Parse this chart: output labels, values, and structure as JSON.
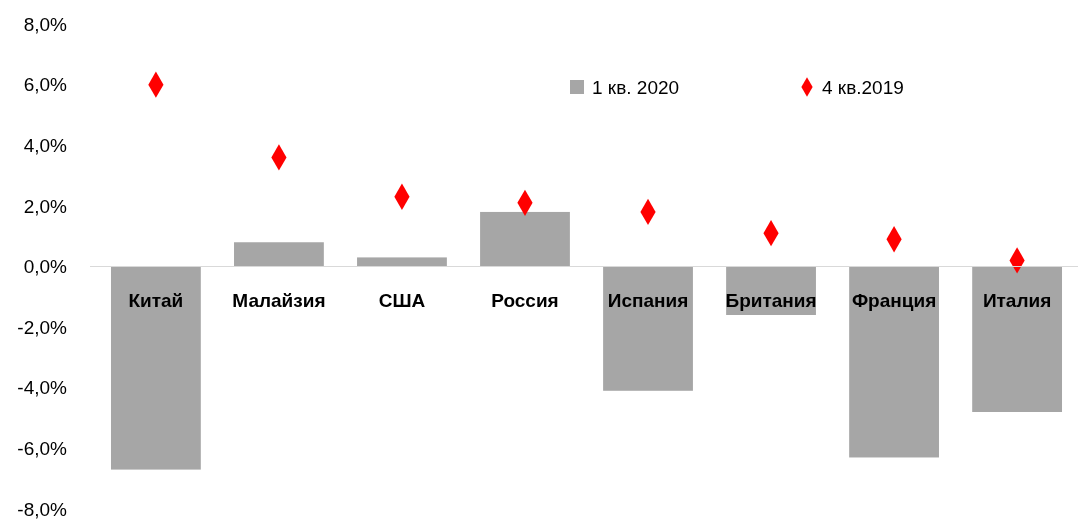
{
  "chart_data": {
    "type": "bar",
    "categories": [
      "Китай",
      "Малайзия",
      "США",
      "Россия",
      "Испания",
      "Британия",
      "Франция",
      "Италия"
    ],
    "series": [
      {
        "name": "1 кв. 2020",
        "color": "#a6a6a6",
        "values": [
          -6.7,
          0.8,
          0.3,
          1.8,
          -4.1,
          -1.6,
          -6.3,
          -4.8
        ]
      },
      {
        "name": "4 кв.2019",
        "type": "scatter",
        "color": "#ff0000",
        "marker": "diamond",
        "values": [
          6.0,
          3.6,
          2.3,
          2.1,
          1.8,
          1.1,
          0.9,
          0.2
        ]
      }
    ],
    "ylim": [
      -8,
      8
    ],
    "yticks": [
      {
        "value": -8,
        "label": "-8,0%"
      },
      {
        "value": -6,
        "label": "-6,0%"
      },
      {
        "value": -4,
        "label": "-4,0%"
      },
      {
        "value": -2,
        "label": "-2,0%"
      },
      {
        "value": 0,
        "label": "0,0%"
      },
      {
        "value": 2,
        "label": "2,0%"
      },
      {
        "value": 4,
        "label": "4,0%"
      },
      {
        "value": 6,
        "label": "6,0%"
      },
      {
        "value": 8,
        "label": "8,0%"
      }
    ],
    "grid": false,
    "legend": "top right"
  }
}
